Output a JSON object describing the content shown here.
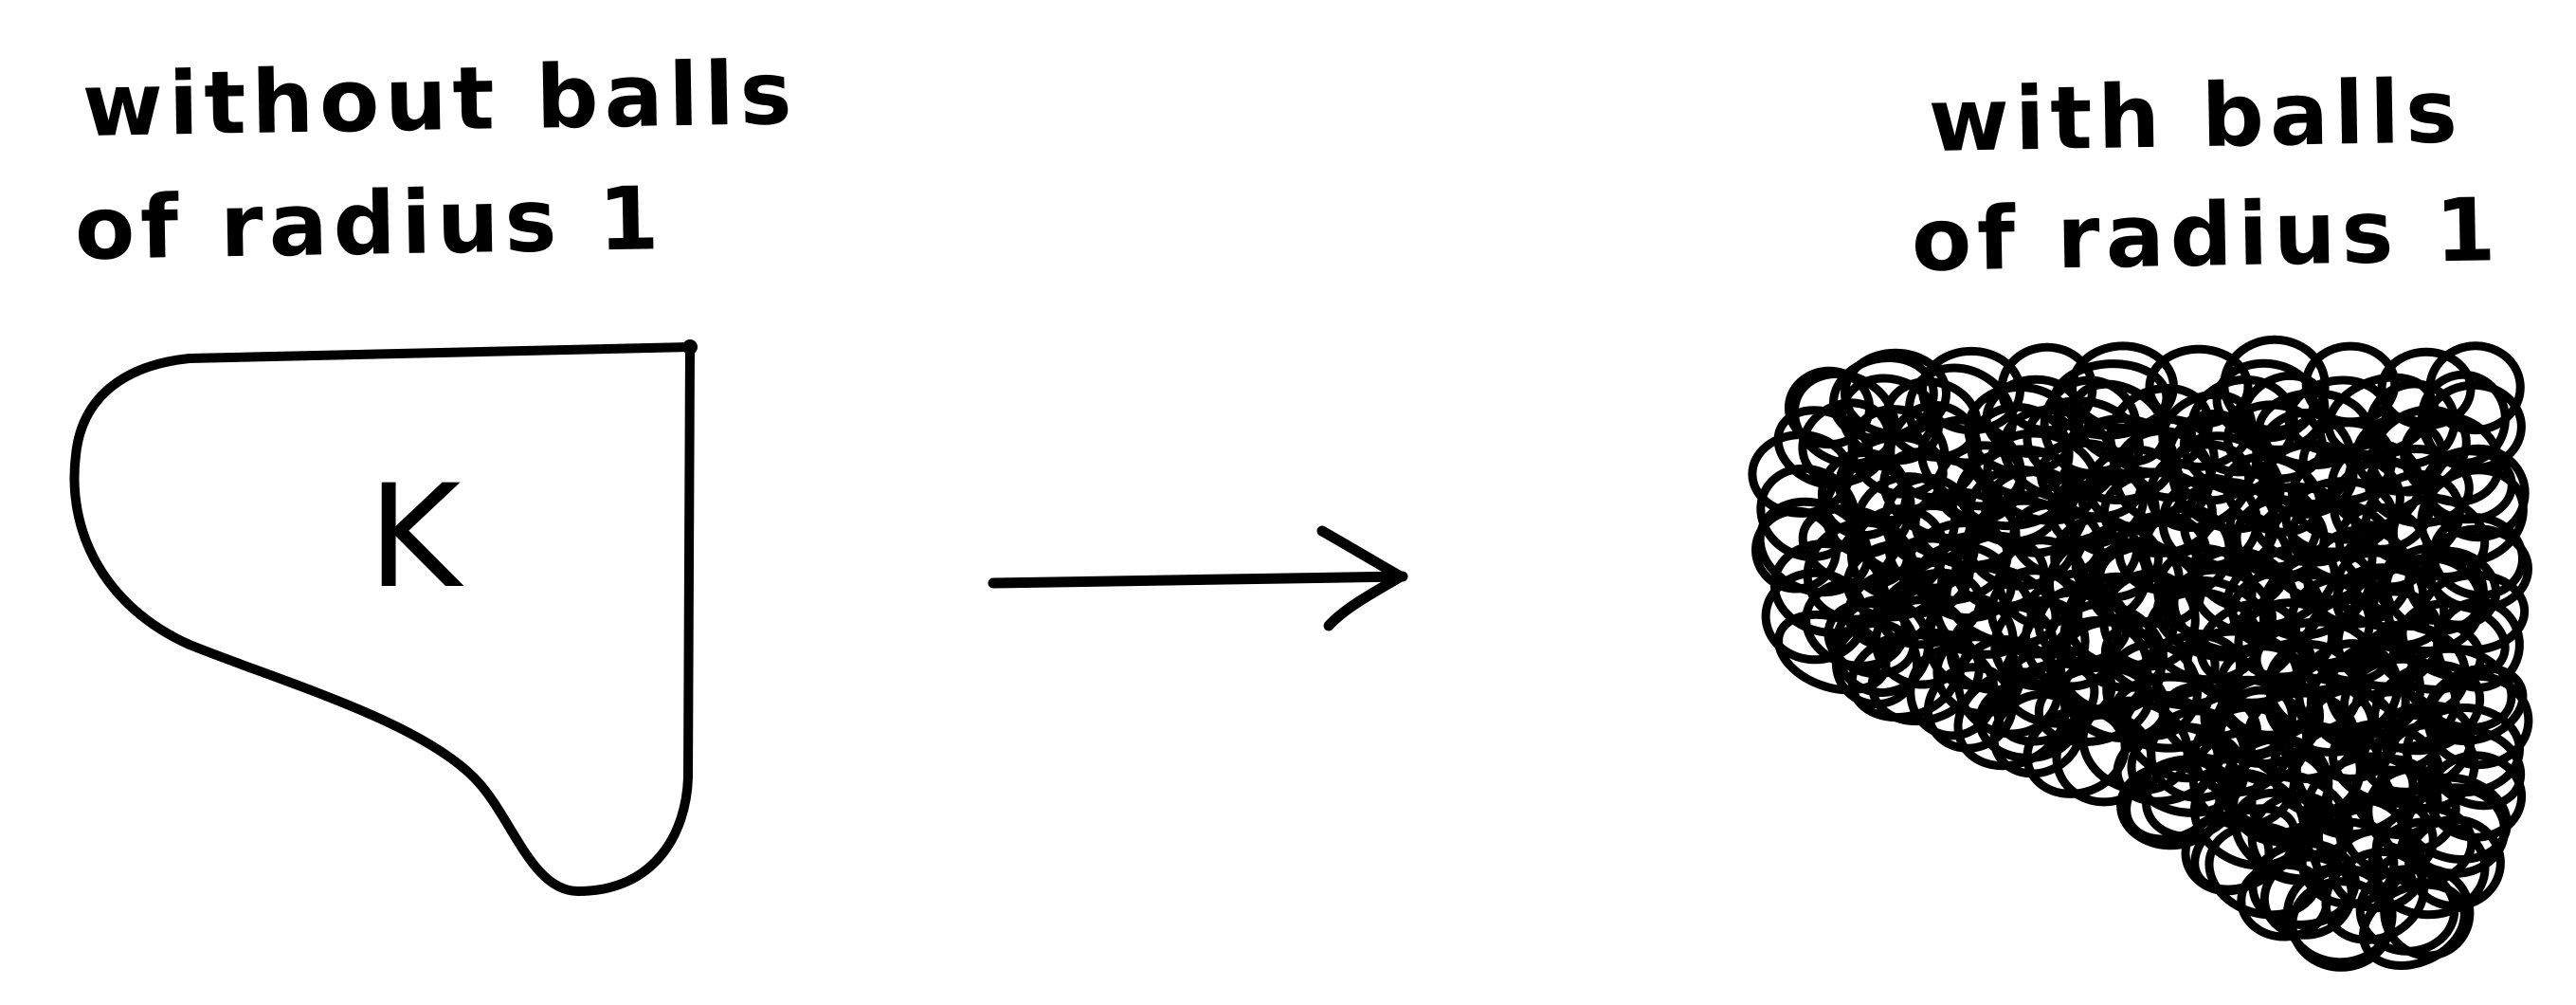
{
  "left_panel": {
    "caption_line1": "without balls",
    "caption_line2": "of radius 1",
    "set_label": "K"
  },
  "right_panel": {
    "caption_line1": "with balls",
    "caption_line2": "of radius 1"
  },
  "colors": {
    "ink": "#000000",
    "paper": "#ffffff"
  },
  "icons": {
    "arrow": "right-arrow-icon"
  }
}
